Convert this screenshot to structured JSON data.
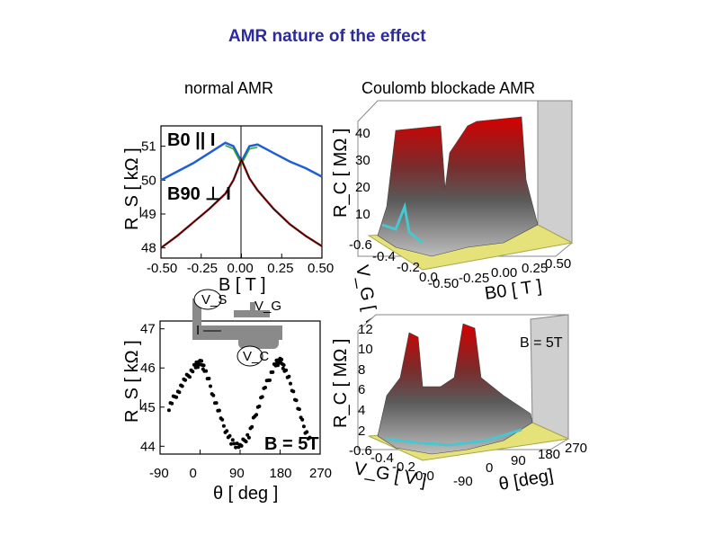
{
  "slide": {
    "title": "AMR nature of the effect",
    "left_label": "normal AMR",
    "right_label": "Coulomb blockade AMR"
  },
  "chart_data": [
    {
      "type": "line",
      "panel": "top-left",
      "title": "",
      "xlabel": "B [ T ]",
      "ylabel": "R_S [ kΩ ]",
      "xlim": [
        -0.5,
        0.5
      ],
      "ylim": [
        47.7,
        51.6
      ],
      "xticks": [
        "-0.50",
        "-0.25",
        "0.00",
        "0.25",
        "0.50"
      ],
      "yticks": [
        "48",
        "49",
        "50",
        "51"
      ],
      "annotations": [
        "B0 || I",
        "B90 ⊥ I"
      ],
      "series": [
        {
          "name": "B0 || I",
          "color": "#1f5fd6",
          "x": [
            -0.5,
            -0.4,
            -0.3,
            -0.2,
            -0.1,
            -0.05,
            0.0,
            0.05,
            0.1,
            0.2,
            0.3,
            0.4,
            0.5
          ],
          "y": [
            50.0,
            50.25,
            50.5,
            50.8,
            51.1,
            51.0,
            50.55,
            51.0,
            51.05,
            50.8,
            50.55,
            50.35,
            50.1
          ]
        },
        {
          "name": "B90 ⊥ I",
          "color": "#111111",
          "x": [
            -0.5,
            -0.4,
            -0.3,
            -0.2,
            -0.1,
            -0.05,
            0.0,
            0.05,
            0.1,
            0.2,
            0.3,
            0.4,
            0.5
          ],
          "y": [
            48.0,
            48.35,
            48.75,
            49.15,
            49.6,
            50.0,
            50.6,
            50.05,
            49.7,
            49.15,
            48.7,
            48.35,
            48.05
          ]
        }
      ]
    },
    {
      "type": "scatter",
      "panel": "bottom-left",
      "title": "",
      "xlabel": "θ [ deg ]",
      "ylabel": "R_S [ kΩ ]",
      "xlim": [
        -90,
        270
      ],
      "ylim": [
        43.8,
        47.2
      ],
      "xticks": [
        "-90",
        "0",
        "90",
        "180",
        "270"
      ],
      "yticks": [
        "44",
        "45",
        "46",
        "47"
      ],
      "annotations": [
        "B = 5T"
      ],
      "inset_labels": [
        "V_S",
        "V_G",
        "I",
        "V_C"
      ],
      "series": [
        {
          "name": "",
          "color": "#000000",
          "x": [
            -70,
            -50,
            -30,
            -10,
            0,
            10,
            30,
            50,
            70,
            90,
            110,
            130,
            150,
            170,
            180,
            190,
            210,
            230,
            250
          ],
          "y": [
            45.0,
            45.4,
            45.75,
            46.05,
            46.15,
            46.0,
            45.3,
            44.6,
            44.1,
            44.0,
            44.3,
            45.0,
            45.6,
            46.1,
            46.2,
            46.0,
            45.4,
            44.6,
            44.05
          ]
        }
      ]
    },
    {
      "type": "heatmap",
      "panel": "top-right",
      "title": "",
      "xlabel": "B0 [ T ]",
      "ylabel": "V_G [ V ]",
      "zlabel": "R_C [ MΩ ]",
      "xticks": [
        "-0.50",
        "-0.25",
        "0.00",
        "0.25",
        "0.50"
      ],
      "yticks": [
        "-0.6",
        "-0.4",
        "-0.2",
        "0.0"
      ],
      "zticks": [
        "10",
        "20",
        "30",
        "40"
      ]
    },
    {
      "type": "heatmap",
      "panel": "bottom-right",
      "title": "",
      "xlabel": "θ [deg]",
      "ylabel": "V_G [ V ]",
      "zlabel": "R_C [ MΩ ]",
      "xticks": [
        "-90",
        "0",
        "90",
        "180",
        "270"
      ],
      "yticks": [
        "-0.6",
        "-0.4",
        "-0.2",
        "0.0"
      ],
      "zticks": [
        "2",
        "4",
        "6",
        "8",
        "10",
        "12"
      ],
      "annotations": [
        "B = 5T"
      ]
    }
  ]
}
